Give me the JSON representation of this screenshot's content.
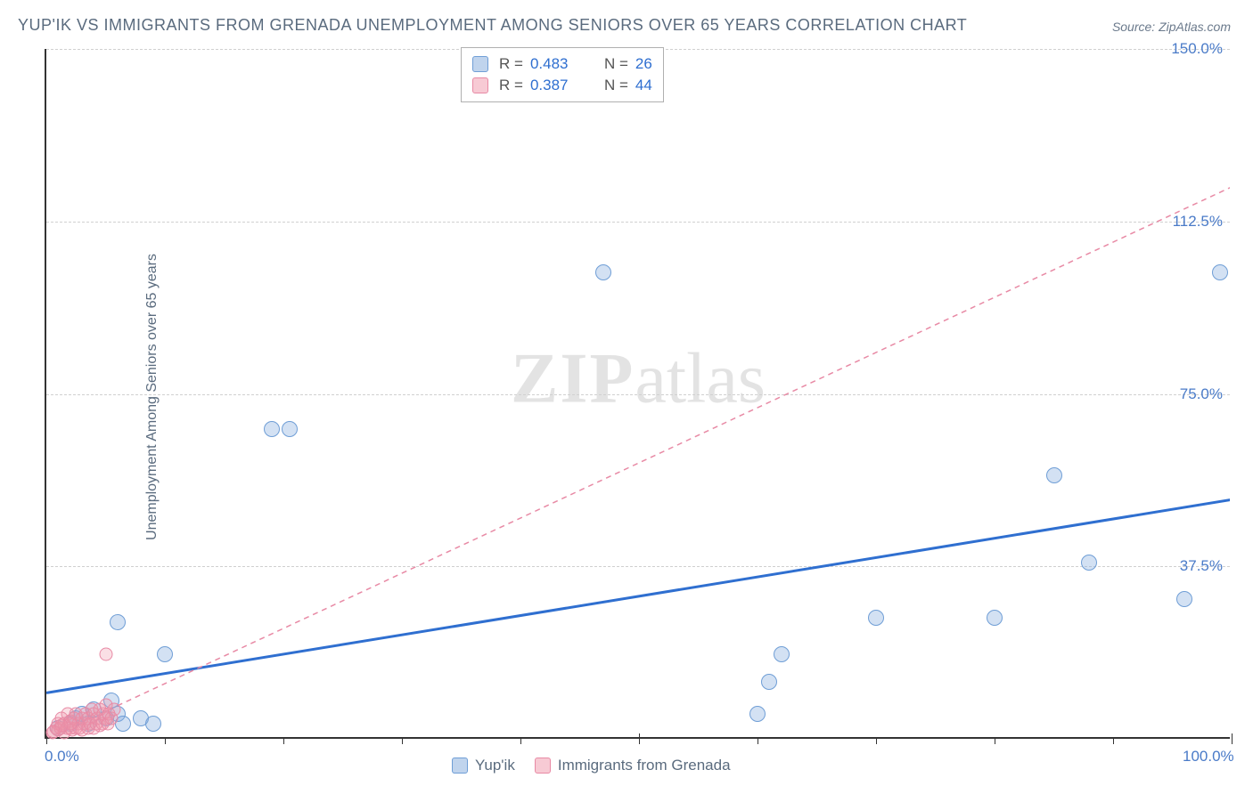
{
  "title": "YUP'IK VS IMMIGRANTS FROM GRENADA UNEMPLOYMENT AMONG SENIORS OVER 65 YEARS CORRELATION CHART",
  "source": "Source: ZipAtlas.com",
  "y_axis_label": "Unemployment Among Seniors over 65 years",
  "watermark_a": "ZIP",
  "watermark_b": "atlas",
  "chart": {
    "type": "scatter",
    "xlim": [
      0,
      100
    ],
    "ylim": [
      0,
      150
    ],
    "x_ticks": [
      0,
      50,
      100
    ],
    "x_tick_labels": [
      "0.0%",
      "",
      "100.0%"
    ],
    "x_minor_ticks": [
      10,
      20,
      30,
      40,
      60,
      70,
      80,
      90
    ],
    "y_grid": [
      37.5,
      75.0,
      112.5,
      150.0
    ],
    "y_tick_labels": [
      "37.5%",
      "75.0%",
      "112.5%",
      "150.0%"
    ],
    "grid_color": "#d0d0d0",
    "background_color": "#ffffff",
    "series": [
      {
        "name": "Yup'ik",
        "color_fill": "rgba(130,170,220,0.35)",
        "color_stroke": "#6f9ed6",
        "marker_size": 18,
        "R": "0.483",
        "N": "26",
        "trend": {
          "x1": 0,
          "y1": 10,
          "x2": 100,
          "y2": 52,
          "color": "#2f6fd0",
          "width": 3,
          "dash": "none"
        },
        "points": [
          [
            1,
            2
          ],
          [
            2,
            3
          ],
          [
            2.5,
            4
          ],
          [
            3,
            5
          ],
          [
            3.5,
            3
          ],
          [
            4,
            6
          ],
          [
            5,
            4
          ],
          [
            5.5,
            8
          ],
          [
            6,
            5
          ],
          [
            6.5,
            3
          ],
          [
            8,
            4
          ],
          [
            9,
            3
          ],
          [
            6,
            25
          ],
          [
            10,
            18
          ],
          [
            19,
            67
          ],
          [
            20.5,
            67
          ],
          [
            47,
            101
          ],
          [
            60,
            5
          ],
          [
            61,
            12
          ],
          [
            62,
            18
          ],
          [
            70,
            26
          ],
          [
            80,
            26
          ],
          [
            85,
            57
          ],
          [
            88,
            38
          ],
          [
            96,
            30
          ],
          [
            99,
            101
          ]
        ]
      },
      {
        "name": "Immigrants from Grenada",
        "color_fill": "rgba(240,150,170,0.3)",
        "color_stroke": "#e88aa5",
        "marker_size": 15,
        "R": "0.387",
        "N": "44",
        "trend": {
          "x1": 0,
          "y1": 0,
          "x2": 100,
          "y2": 120,
          "color": "#e88aa5",
          "width": 1.5,
          "dash": "6,5"
        },
        "points": [
          [
            0.5,
            1
          ],
          [
            0.8,
            2
          ],
          [
            1,
            1.5
          ],
          [
            1,
            3
          ],
          [
            1.2,
            2
          ],
          [
            1.3,
            4
          ],
          [
            1.5,
            1
          ],
          [
            1.5,
            3
          ],
          [
            1.7,
            2
          ],
          [
            1.8,
            5
          ],
          [
            2,
            2
          ],
          [
            2,
            3.5
          ],
          [
            2.2,
            1.5
          ],
          [
            2.3,
            4
          ],
          [
            2.5,
            2
          ],
          [
            2.5,
            5
          ],
          [
            2.7,
            3
          ],
          [
            2.8,
            2
          ],
          [
            3,
            4
          ],
          [
            3,
            1.5
          ],
          [
            3.2,
            3
          ],
          [
            3.3,
            5
          ],
          [
            3.5,
            2
          ],
          [
            3.5,
            4
          ],
          [
            3.7,
            3
          ],
          [
            3.8,
            6
          ],
          [
            4,
            2
          ],
          [
            4,
            5
          ],
          [
            4.2,
            3
          ],
          [
            4.3,
            4
          ],
          [
            4.5,
            2.5
          ],
          [
            4.5,
            6
          ],
          [
            4.7,
            3
          ],
          [
            4.8,
            5
          ],
          [
            5,
            4
          ],
          [
            5,
            7
          ],
          [
            5.2,
            3
          ],
          [
            5.3,
            5
          ],
          [
            5.5,
            4
          ],
          [
            5.7,
            6
          ],
          [
            5,
            18
          ],
          [
            2,
            3
          ],
          [
            1.3,
            2.5
          ],
          [
            0.6,
            1.2
          ]
        ]
      }
    ]
  },
  "legend_top_label_R": "R =",
  "legend_top_label_N": "N =",
  "legend_bottom": [
    {
      "label": "Yup'ik",
      "swatch": "blue"
    },
    {
      "label": "Immigrants from Grenada",
      "swatch": "pink"
    }
  ]
}
